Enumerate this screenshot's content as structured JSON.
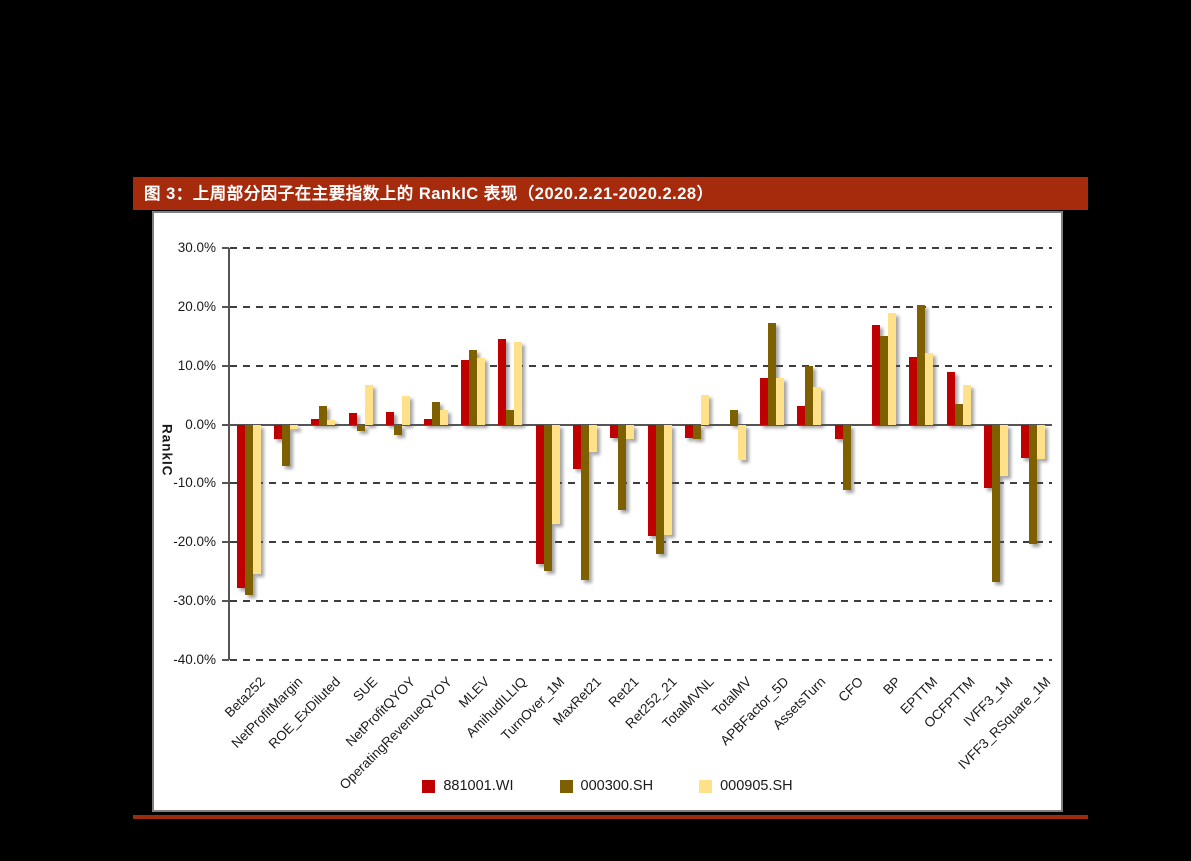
{
  "header": {
    "title": "图 3：上周部分因子在主要指数上的 RankIC 表现（2020.2.21-2020.2.28）",
    "bg_color": "#A62B0D",
    "text_color": "#FFFFFF"
  },
  "footer": {
    "rule_color": "#9D2B0E"
  },
  "chart_data": {
    "type": "bar",
    "title": "",
    "xlabel": "",
    "ylabel": "RankIC",
    "ylim": [
      -40,
      30
    ],
    "ytick_step": 10,
    "ytick_labels": [
      "30.0%",
      "20.0%",
      "10.0%",
      "0.0%",
      "-10.0%",
      "-20.0%",
      "-30.0%",
      "-40.0%"
    ],
    "grid": "horizontal dashed",
    "legend_position": "bottom",
    "categories": [
      "Beta252",
      "NetProfitMargin",
      "ROE_ExDiluted",
      "SUE",
      "NetProfitQYOY",
      "OperatingRevenueQYOY",
      "MLEV",
      "AmihudILLIQ",
      "TurnOver_1M",
      "MaxRet21",
      "Ret21",
      "Ret252_21",
      "TotalMVNL",
      "TotalMV",
      "APBFactor_5D",
      "AssetsTurn",
      "CFO",
      "BP",
      "EPTTM",
      "OCFPTTM",
      "IVFF3_1M",
      "IVFF3_RSquare_1M"
    ],
    "series": [
      {
        "name": "881001.WI",
        "color": "#C00000",
        "values": [
          -27.7,
          -2.5,
          1.0,
          2.0,
          2.1,
          1.0,
          11.0,
          14.5,
          -23.7,
          -7.5,
          -2.3,
          -19.0,
          -2.3,
          0.0,
          7.9,
          3.1,
          -2.5,
          17.0,
          11.5,
          9.0,
          -10.8,
          -5.6
        ]
      },
      {
        "name": "000300.SH",
        "color": "#7F6000",
        "values": [
          -28.9,
          -7.0,
          3.1,
          -1.1,
          -1.8,
          3.9,
          12.7,
          2.5,
          -24.9,
          -26.4,
          -14.5,
          -22.0,
          -2.5,
          2.4,
          17.2,
          9.9,
          -11.2,
          15.1,
          20.4,
          3.5,
          -26.7,
          -20.3
        ]
      },
      {
        "name": "000905.SH",
        "color": "#FFE18A",
        "values": [
          -25.4,
          -0.8,
          0.7,
          6.8,
          4.9,
          2.4,
          11.3,
          14.0,
          -16.9,
          -4.6,
          -2.4,
          -18.7,
          5.0,
          -6.0,
          7.9,
          6.3,
          0.0,
          19.0,
          12.1,
          6.7,
          -8.7,
          -5.8
        ]
      }
    ]
  }
}
